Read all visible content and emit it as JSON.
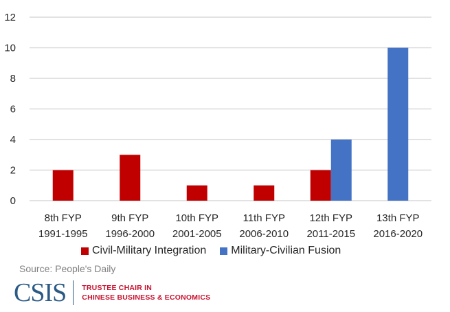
{
  "chart_data": {
    "type": "bar",
    "title": "",
    "xlabel": "",
    "ylabel": "",
    "ylim": [
      0,
      12
    ],
    "yticks": [
      0,
      2,
      4,
      6,
      8,
      10,
      12
    ],
    "grid": true,
    "legend_position": "bottom",
    "categories": [
      [
        "8th FYP",
        "1991-1995"
      ],
      [
        "9th FYP",
        "1996-2000"
      ],
      [
        "10th FYP",
        "2001-2005"
      ],
      [
        "11th FYP",
        "2006-2010"
      ],
      [
        "12th FYP",
        "2011-2015"
      ],
      [
        "13th FYP",
        "2016-2020"
      ]
    ],
    "series": [
      {
        "name": "Civil-Military Integration",
        "color": "#c00000",
        "values": [
          2,
          3,
          1,
          1,
          2,
          0
        ]
      },
      {
        "name": "Military-Civilian Fusion",
        "color": "#4472c4",
        "values": [
          0,
          0,
          0,
          0,
          4,
          10
        ]
      }
    ]
  },
  "source": "Source: People's Daily",
  "logo": {
    "name": "CSIS",
    "line1": "TRUSTEE CHAIR IN",
    "line2": "CHINESE BUSINESS & ECONOMICS"
  }
}
